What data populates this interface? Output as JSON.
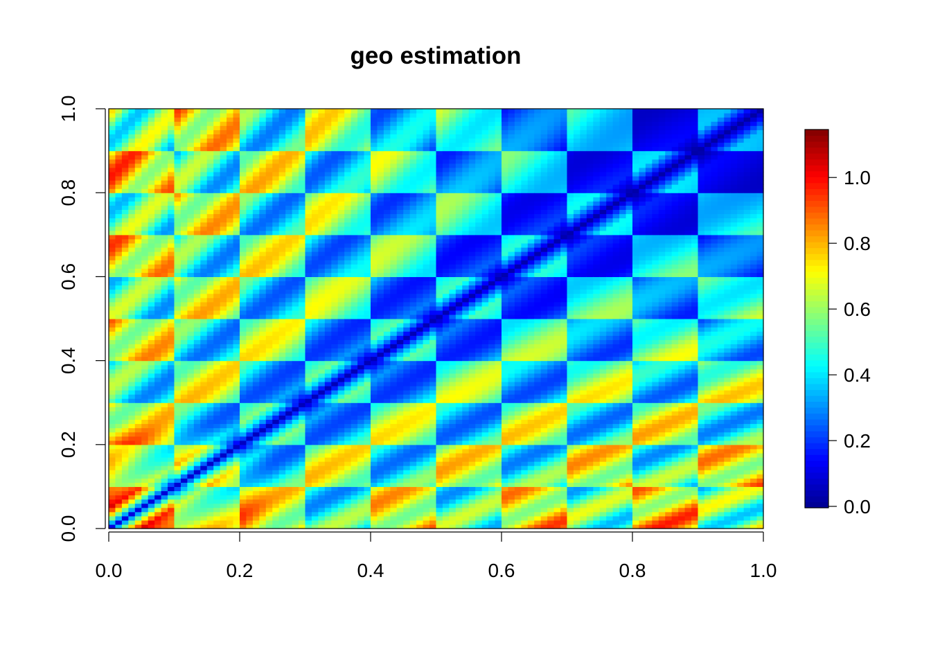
{
  "chart_data": {
    "type": "heatmap",
    "title": "geo estimation",
    "xlabel": "",
    "ylabel": "",
    "xlim": [
      0.0,
      1.0
    ],
    "ylim": [
      0.0,
      1.0
    ],
    "x_ticks": [
      "0.0",
      "0.2",
      "0.4",
      "0.6",
      "0.8",
      "1.0"
    ],
    "y_ticks": [
      "0.0",
      "0.2",
      "0.4",
      "0.6",
      "0.8",
      "1.0"
    ],
    "grid": false,
    "resolution": 100,
    "block_count": 10,
    "description": "Surface on the unit square with a dark minimum along the diagonal x = y and a 10 x 10 block pattern; values largest near the origin",
    "zlim": [
      0.0,
      1.15
    ],
    "colorbar": {
      "ticks": [
        "0.0",
        "0.2",
        "0.4",
        "0.6",
        "0.8",
        "1.0"
      ],
      "tick_values": [
        0.0,
        0.2,
        0.4,
        0.6,
        0.8,
        1.0
      ],
      "placement": "right",
      "palette": "tim.colors",
      "colors": [
        "#00008F",
        "#0000FF",
        "#0080FF",
        "#00FFFF",
        "#80FF80",
        "#FFFF00",
        "#FF8000",
        "#FF0000",
        "#800000"
      ]
    }
  }
}
